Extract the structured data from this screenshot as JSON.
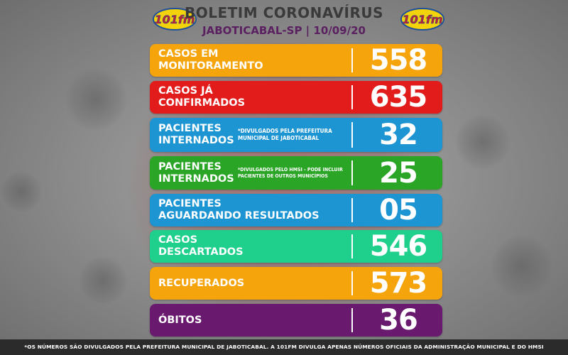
{
  "header": {
    "title": "BOLETIM CORONAVÍRUS",
    "subtitle": "JABOTICABAL-SP | 10/09/20",
    "logo_text": "101fm"
  },
  "rows": [
    {
      "line1": "CASOS EM",
      "line2": "MONITORAMENTO",
      "note1": "",
      "note2": "",
      "value": "558",
      "color": "#f5a40c"
    },
    {
      "line1": "CASOS JÁ",
      "line2": "CONFIRMADOS",
      "note1": "",
      "note2": "",
      "value": "635",
      "color": "#e21b1b"
    },
    {
      "line1": "PACIENTES",
      "line2": "INTERNADOS",
      "note1": "*DIVULGADOS PELA PREFEITURA",
      "note2": "MUNICIPAL DE JABOTICABAL",
      "value": "32",
      "color": "#1e95d3"
    },
    {
      "line1": "PACIENTES",
      "line2": "INTERNADOS",
      "note1": "*DIVULGADOS PELO HMSI - PODE INCLUIR",
      "note2": "PACIENTES DE OUTROS MUNICÍPIOS",
      "value": "25",
      "color": "#2aa526"
    },
    {
      "line1": "PACIENTES",
      "line2": "AGUARDANDO RESULTADOS",
      "note1": "",
      "note2": "",
      "value": "05",
      "color": "#1e95d3"
    },
    {
      "line1": "CASOS",
      "line2": "DESCARTADOS",
      "note1": "",
      "note2": "",
      "value": "546",
      "color": "#1fcf8c"
    },
    {
      "line1": "RECUPERADOS",
      "line2": "",
      "note1": "",
      "note2": "",
      "value": "573",
      "color": "#f5a40c"
    },
    {
      "line1": "ÓBITOS",
      "line2": "",
      "note1": "",
      "note2": "",
      "value": "36",
      "color": "#6a1a6e"
    }
  ],
  "footer": {
    "text": "*OS NÚMEROS SÃO DIVULGADOS PELA PREFEITURA MUNICIPAL DE JABOTICABAL. A 101FM DIVULGA APENAS NÚMEROS OFICIAIS DA ADMINISTRAÇÃO MUNICIPAL E DO HMSI"
  }
}
